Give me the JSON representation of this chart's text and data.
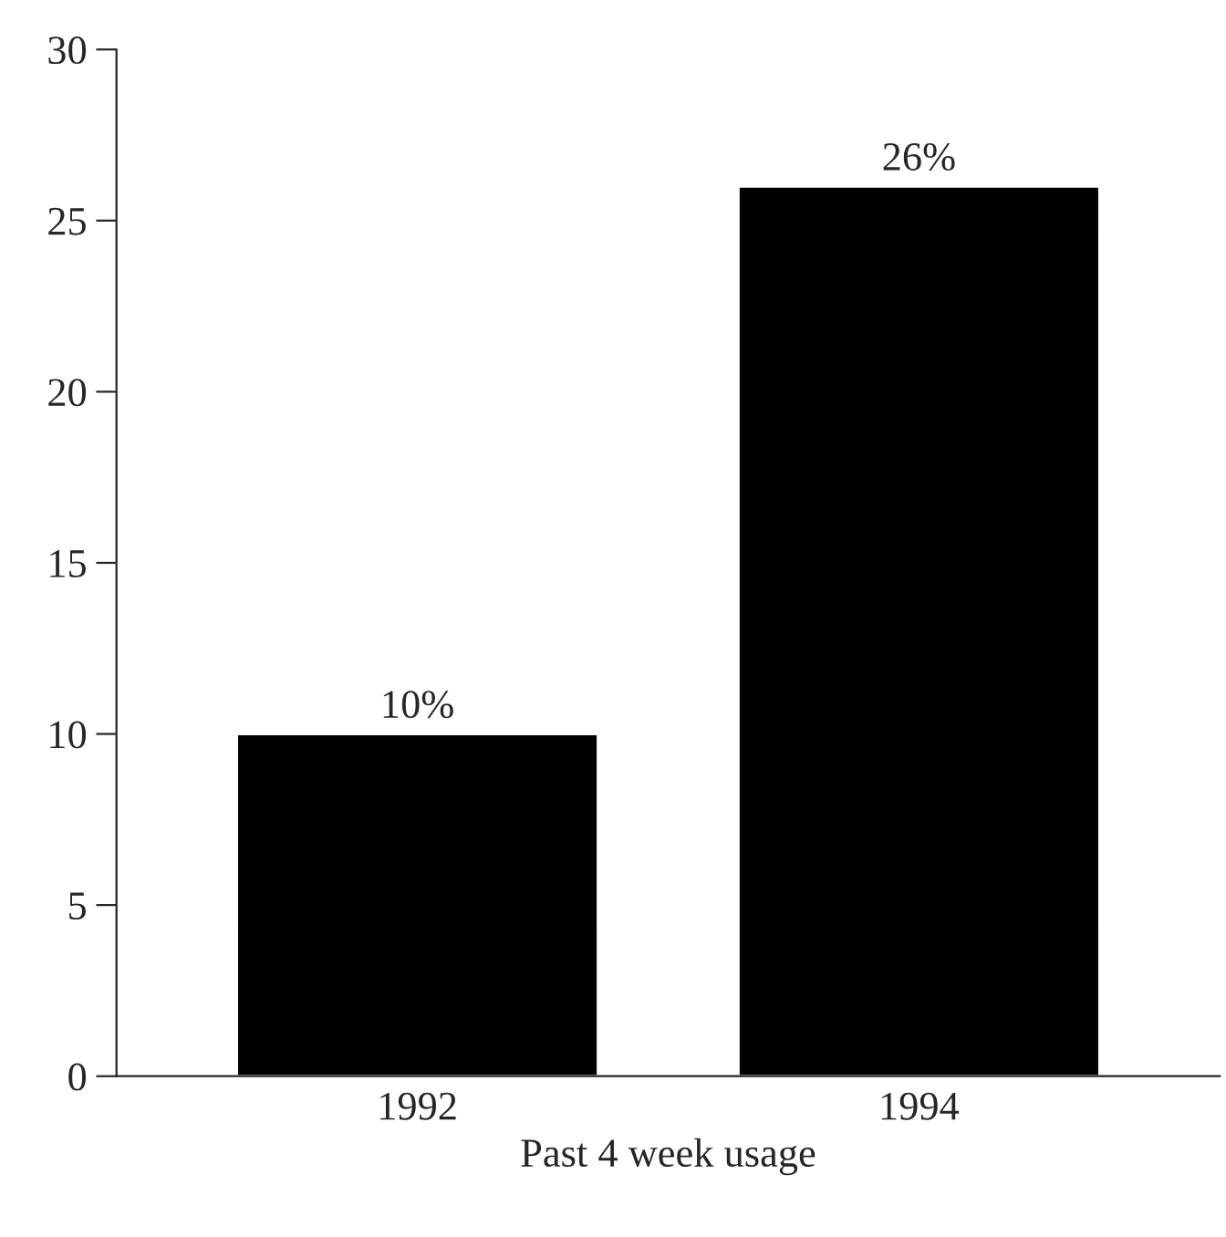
{
  "chart_data": {
    "type": "bar",
    "categories": [
      "1992",
      "1994"
    ],
    "values": [
      10,
      26
    ],
    "value_labels": [
      "10%",
      "26%"
    ],
    "color": "#000000",
    "xlabel": "Past 4 week usage",
    "ylim": [
      0,
      30
    ],
    "yticks": [
      0,
      5,
      10,
      15,
      20,
      25,
      30
    ],
    "grid": false,
    "legend": false
  }
}
